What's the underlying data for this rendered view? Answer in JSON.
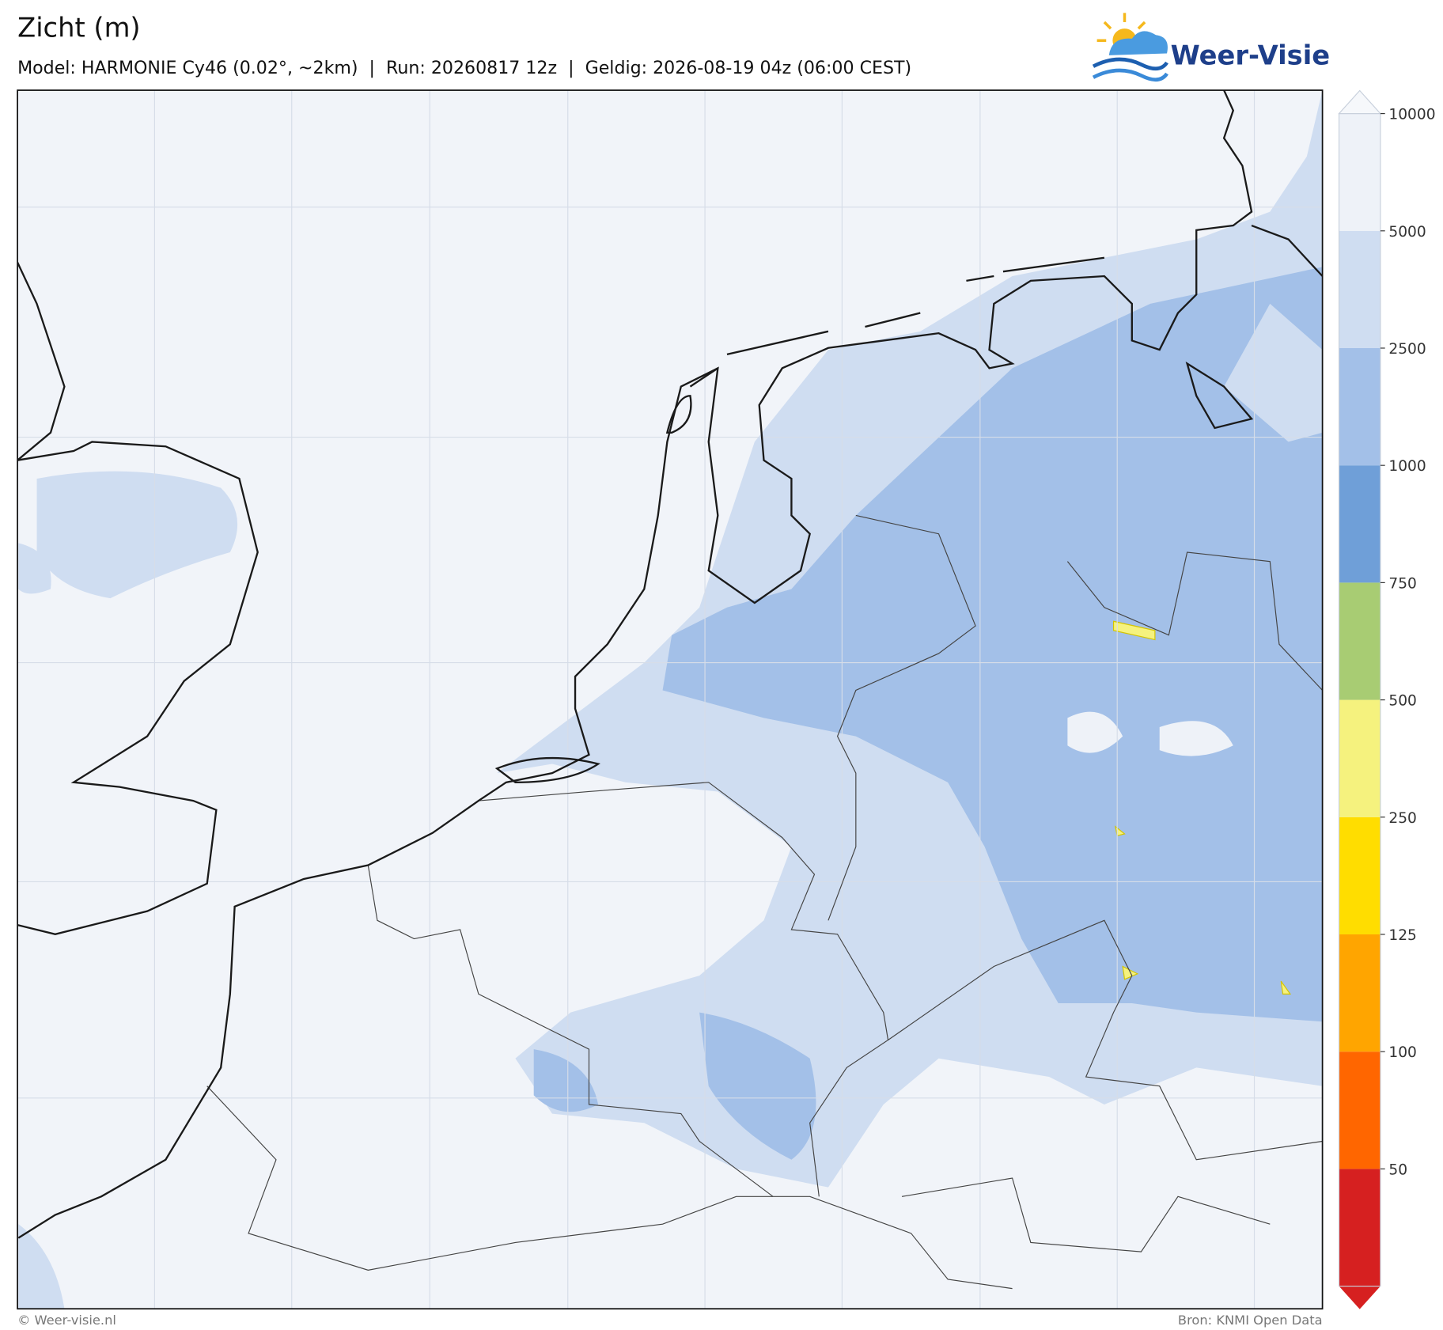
{
  "header": {
    "title": "Zicht (m)",
    "subtitle": "Model: HARMONIE Cy46 (0.02°, ~2km)  |  Run: 20260817 12z  |  Geldig: 2026-08-19 04z (06:00 CEST)",
    "logo": "Weer-Visie"
  },
  "colorbar": {
    "levels": [
      50,
      100,
      125,
      250,
      500,
      750,
      1000,
      2500,
      5000,
      10000
    ],
    "colors": [
      "#d62020",
      "#ff6600",
      "#ffa500",
      "#ffdd00",
      "#f5f27e",
      "#a8cc73",
      "#6f9fd8",
      "#a3c0e8",
      "#cfddf1",
      "#eef2f8",
      "#f6f8fb"
    ]
  },
  "footer": {
    "left": "© Weer-visie.nl",
    "right": "Bron: KNMI Open Data"
  }
}
